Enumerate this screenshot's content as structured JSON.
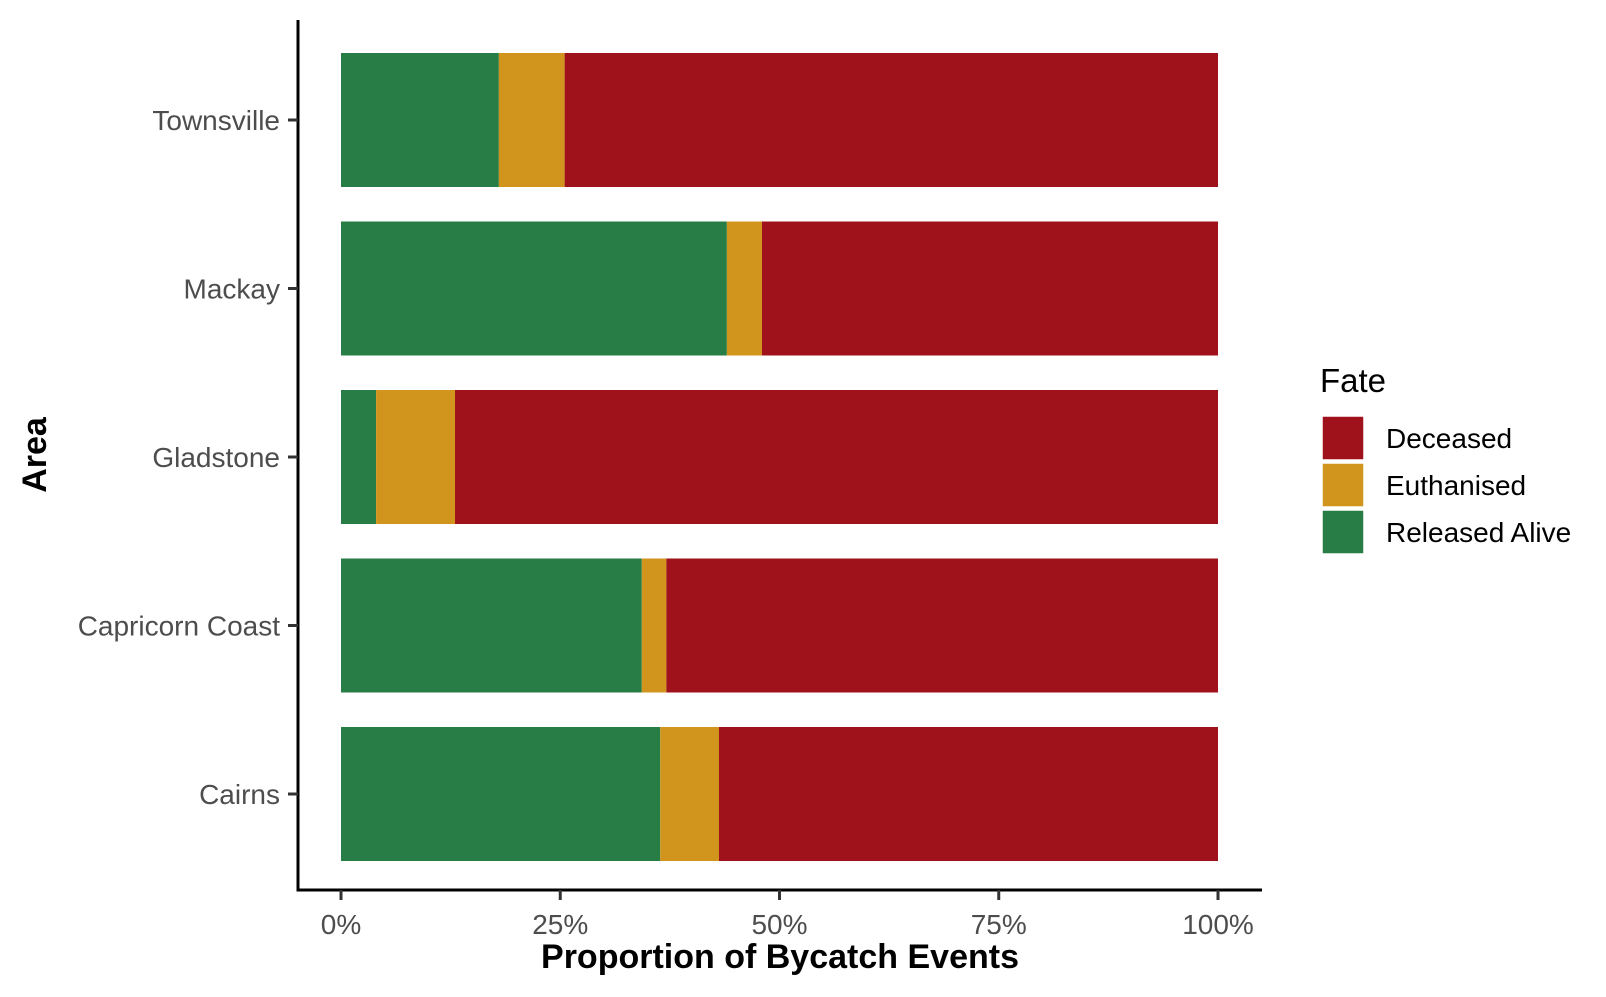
{
  "chart_data": {
    "type": "bar",
    "orientation": "horizontal",
    "stacked": true,
    "xlabel": "Proportion of Bycatch Events",
    "ylabel": "Area",
    "xlim": [
      0,
      1
    ],
    "x_ticks": [
      0,
      0.25,
      0.5,
      0.75,
      1
    ],
    "x_tick_labels": [
      "0%",
      "25%",
      "50%",
      "75%",
      "100%"
    ],
    "categories": [
      "Townsville",
      "Mackay",
      "Gladstone",
      "Capricorn Coast",
      "Cairns"
    ],
    "series": [
      {
        "name": "Released Alive",
        "color": "#287D47",
        "values": [
          0.18,
          0.44,
          0.04,
          0.343,
          0.364
        ]
      },
      {
        "name": "Euthanised",
        "color": "#D1951D",
        "values": [
          0.075,
          0.04,
          0.09,
          0.028,
          0.067
        ]
      },
      {
        "name": "Deceased",
        "color": "#A0121B",
        "values": [
          0.745,
          0.52,
          0.87,
          0.629,
          0.569
        ]
      }
    ],
    "legend": {
      "title": "Fate",
      "position": "right",
      "entries": [
        "Deceased",
        "Euthanised",
        "Released Alive"
      ]
    },
    "grid": false
  }
}
